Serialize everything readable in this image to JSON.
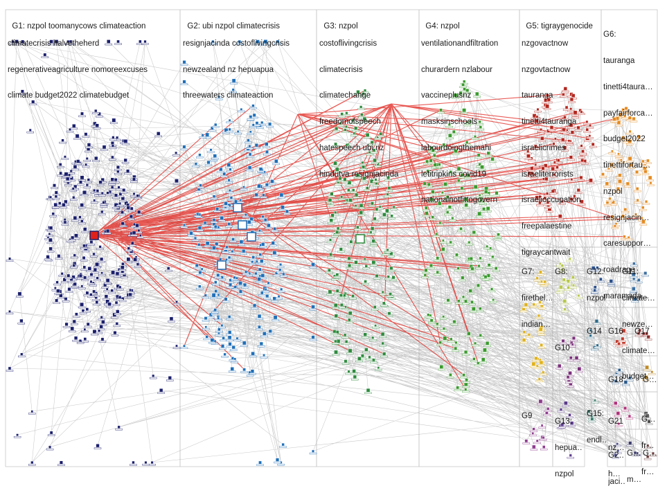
{
  "groups": [
    {
      "id": "G1",
      "label": "G1:",
      "lines": [
        "nzpol toomanycows climateaction",
        "climatecrisis halvetheherd",
        "regenerativeagriculture nomoreexcuses",
        "climate budget2022 climatebudget"
      ],
      "color": "#1b1f6b"
    },
    {
      "id": "G2",
      "label": "G2:",
      "lines": [
        "ubi nzpol climatecrisis",
        "resignjacinda costoflivingcrisis",
        "newzealand nz hepuapua",
        "threewaters climateaction"
      ],
      "color": "#1f6fb8"
    },
    {
      "id": "G3",
      "label": "G3:",
      "lines": [
        "nzpol",
        "costoflivingcrisis",
        "climatecrisis",
        "climatechange",
        "freedomofspeech",
        "hatespeech ubi nz",
        "hindutva resignjacinda"
      ],
      "color": "#2e8b3e"
    },
    {
      "id": "G4",
      "label": "G4:",
      "lines": [
        "nzpol",
        "ventilationandfiltration",
        "churardern nzlabour",
        "vaccineplusnz",
        "masksinschools",
        "labourdoingthemahi",
        "letitripkins covid19",
        "nationalnotfittogovern"
      ],
      "color": "#3a9a2e"
    },
    {
      "id": "G5",
      "label": "G5:",
      "lines": [
        "tigraygenocide",
        "nzgovactnow",
        "nzgovtactnow",
        "tauranga",
        "tinetti4tauranga",
        "israelicrimes",
        "israeliterrorists",
        "israelioccupation",
        "freepalaestine",
        "tigraycantwait"
      ],
      "color": "#b3261e"
    },
    {
      "id": "G6",
      "label": "G6:",
      "lines": [
        "tauranga",
        "tinetti4taura…",
        "payfairforca…",
        "budget2022",
        "tinettifortau…",
        "nzpol",
        "resignjacin…",
        "caresuppor…",
        "roadrage",
        "maramada…"
      ],
      "color": "#e58a1f"
    },
    {
      "id": "G7",
      "label": "G7:",
      "lines": [
        "firethel…",
        "indian…"
      ],
      "color": "#e0b21a"
    },
    {
      "id": "G8",
      "label": "G8:",
      "lines": [],
      "color": "#b7c84a"
    },
    {
      "id": "G9",
      "label": "G9",
      "lines": [],
      "color": "#8e3b8e"
    },
    {
      "id": "G10",
      "label": "G10",
      "lines": [],
      "color": "#7a2f7a"
    },
    {
      "id": "G11",
      "label": "G11:",
      "lines": [
        "climate…",
        "newze…",
        "climate…",
        "budget…"
      ],
      "color": "#3b6fa0"
    },
    {
      "id": "G12",
      "label": "G12:",
      "lines": [
        "nzpol"
      ],
      "color": "#2a4f8a"
    },
    {
      "id": "G13",
      "label": "G13:",
      "lines": [
        "hepua…",
        "nzpol"
      ],
      "color": "#5a3a8a"
    },
    {
      "id": "G14",
      "label": "G14",
      "lines": [],
      "color": "#2a6a8a"
    },
    {
      "id": "G15",
      "label": "G15:",
      "lines": [
        "endl…"
      ],
      "color": "#3a7a6a"
    },
    {
      "id": "G16",
      "label": "G16",
      "lines": [],
      "color": "#c0392b"
    },
    {
      "id": "G17",
      "label": "G17",
      "lines": [],
      "color": "#8a2a2a"
    },
    {
      "id": "G18",
      "label": "G18",
      "lines": [],
      "color": "#2a5a8a"
    },
    {
      "id": "G19",
      "label": "G…",
      "lines": [],
      "color": "#c08a2a"
    },
    {
      "id": "G20",
      "label": "G2…",
      "lines": [
        "jaci…"
      ],
      "color": "#4a4a8a"
    },
    {
      "id": "G21",
      "label": "G21",
      "lines": [
        "nz…",
        "h…"
      ],
      "color": "#b0307a"
    },
    {
      "id": "G22",
      "label": "G…",
      "lines": [
        "fr…",
        "fr…"
      ],
      "color": "#5a5a5a"
    },
    {
      "id": "G23",
      "label": "G…",
      "lines": [
        "m…"
      ],
      "color": "#3a3a6a"
    },
    {
      "id": "G24",
      "label": "G…",
      "lines": [],
      "color": "#6a3a3a"
    }
  ],
  "colors": {
    "edge_gray": "#9c9c9c",
    "edge_red": "#e0211b",
    "frame": "#c8c8c8",
    "node_box": "#ffffff"
  }
}
